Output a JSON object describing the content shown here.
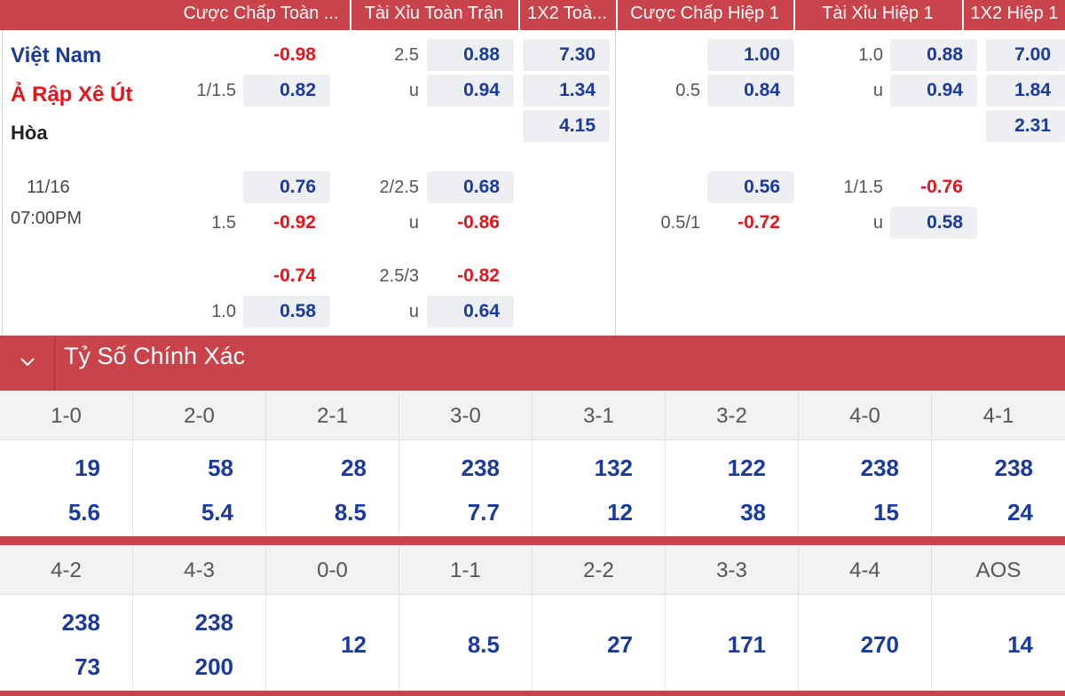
{
  "header": {
    "columns": [
      "Cược Chấp Toàn ...",
      "Tài Xỉu Toàn Trận",
      "1X2 Toà...",
      "Cược Chấp Hiệp 1",
      "Tài Xỉu Hiệp 1",
      "1X2 Hiệp 1"
    ]
  },
  "teams": {
    "home": "Việt Nam",
    "away": "Ả Rập Xê Út",
    "draw": "Hòa"
  },
  "match": {
    "date": "11/16",
    "time": "07:00PM"
  },
  "odds": {
    "r1": {
      "hc_a": "-0.98",
      "ou_line": "2.5",
      "ou_a": "0.88",
      "x12_home": "7.30",
      "h1hc_a": "1.00",
      "h1ou_line": "1.0",
      "h1ou_a": "0.88",
      "h1x12_home": "7.00"
    },
    "r2": {
      "hc_line": "1/1.5",
      "hc_b": "0.82",
      "ou_u": "u",
      "ou_b": "0.94",
      "x12_away": "1.34",
      "h1hc_line": "0.5",
      "h1hc_b": "0.84",
      "h1ou_u": "u",
      "h1ou_b": "0.94",
      "h1x12_away": "1.84"
    },
    "r3": {
      "x12_draw": "4.15",
      "h1x12_draw": "2.31"
    },
    "r4": {
      "hc_a": "0.76",
      "ou_line": "2/2.5",
      "ou_a": "0.68",
      "h1hc_a": "0.56",
      "h1ou_line": "1/1.5",
      "h1ou_a": "-0.76"
    },
    "r5": {
      "hc_line": "1.5",
      "hc_b": "-0.92",
      "ou_u": "u",
      "ou_b": "-0.86",
      "h1hc_line": "0.5/1",
      "h1hc_b": "-0.72",
      "h1ou_u": "u",
      "h1ou_b": "0.58"
    },
    "r6": {
      "hc_a": "-0.74",
      "ou_line": "2.5/3",
      "ou_a": "-0.82"
    },
    "r7": {
      "hc_line": "1.0",
      "hc_b": "0.58",
      "ou_u": "u",
      "ou_b": "0.64"
    }
  },
  "section": {
    "title": "Tỷ Số Chính Xác"
  },
  "scores_row1": [
    {
      "score": "1-0",
      "home": "19",
      "away": "5.6"
    },
    {
      "score": "2-0",
      "home": "58",
      "away": "5.4"
    },
    {
      "score": "2-1",
      "home": "28",
      "away": "8.5"
    },
    {
      "score": "3-0",
      "home": "238",
      "away": "7.7"
    },
    {
      "score": "3-1",
      "home": "132",
      "away": "12"
    },
    {
      "score": "3-2",
      "home": "122",
      "away": "38"
    },
    {
      "score": "4-0",
      "home": "238",
      "away": "15"
    },
    {
      "score": "4-1",
      "home": "238",
      "away": "24"
    }
  ],
  "scores_row2": [
    {
      "score": "4-2",
      "home": "238",
      "away": "73"
    },
    {
      "score": "4-3",
      "home": "238",
      "away": "200"
    },
    {
      "score": "0-0",
      "single": "12"
    },
    {
      "score": "1-1",
      "single": "8.5"
    },
    {
      "score": "2-2",
      "single": "27"
    },
    {
      "score": "3-3",
      "single": "171"
    },
    {
      "score": "4-4",
      "single": "270"
    },
    {
      "score": "AOS",
      "single": "14"
    }
  ],
  "colors": {
    "header_red": "#c9434a",
    "odd_blue": "#1a3a9c",
    "odd_red": "#e8141c"
  }
}
